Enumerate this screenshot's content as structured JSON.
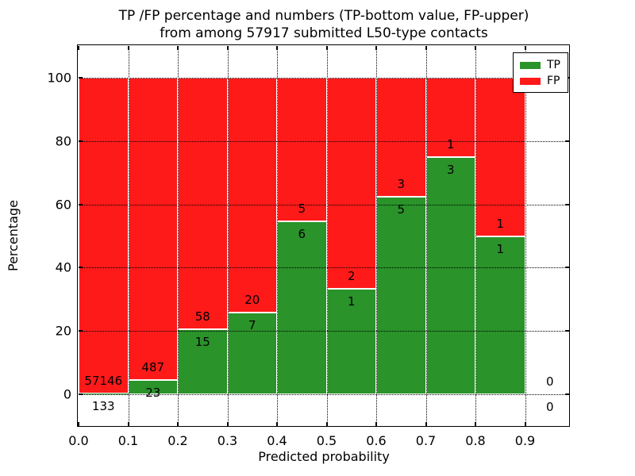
{
  "title_line1": "TP /FP percentage and numbers (TP-bottom value, FP-upper)",
  "title_line2": "from among 57917 submitted L50-type contacts",
  "chart_data": {
    "type": "bar",
    "stacked": true,
    "normalized_to_percent": true,
    "title": "TP /FP percentage and numbers (TP-bottom value, FP-upper) from among 57917 submitted L50-type contacts",
    "xlabel": "Predicted probability",
    "ylabel": "Percentage",
    "xlim": [
      0.0,
      0.988
    ],
    "ylim": [
      -10,
      110
    ],
    "grid": "dotted black, on",
    "bin_width": 0.1,
    "legend_position": "upper right",
    "legend": [
      {
        "label": "TP",
        "color": "#2a932a"
      },
      {
        "label": "FP",
        "color": "#ff1a1a"
      }
    ],
    "x_ticks": [
      {
        "value": 0.0,
        "label": "0.0"
      },
      {
        "value": 0.1,
        "label": "0.1"
      },
      {
        "value": 0.2,
        "label": "0.2"
      },
      {
        "value": 0.3,
        "label": "0.3"
      },
      {
        "value": 0.4,
        "label": "0.4"
      },
      {
        "value": 0.5,
        "label": "0.5"
      },
      {
        "value": 0.6,
        "label": "0.6"
      },
      {
        "value": 0.7,
        "label": "0.7"
      },
      {
        "value": 0.8,
        "label": "0.8"
      },
      {
        "value": 0.9,
        "label": "0.9"
      }
    ],
    "y_ticks": [
      {
        "value": 0,
        "label": "0"
      },
      {
        "value": 20,
        "label": "20"
      },
      {
        "value": 40,
        "label": "40"
      },
      {
        "value": 60,
        "label": "60"
      },
      {
        "value": 80,
        "label": "80"
      },
      {
        "value": 100,
        "label": "100"
      }
    ],
    "bins": [
      {
        "x_start": 0.0,
        "x_end": 0.1,
        "tp": 133,
        "fp": 57146,
        "tp_pct": 0.23
      },
      {
        "x_start": 0.1,
        "x_end": 0.2,
        "tp": 23,
        "fp": 487,
        "tp_pct": 4.51
      },
      {
        "x_start": 0.2,
        "x_end": 0.3,
        "tp": 15,
        "fp": 58,
        "tp_pct": 20.55
      },
      {
        "x_start": 0.3,
        "x_end": 0.4,
        "tp": 7,
        "fp": 20,
        "tp_pct": 25.93
      },
      {
        "x_start": 0.4,
        "x_end": 0.5,
        "tp": 6,
        "fp": 5,
        "tp_pct": 54.55
      },
      {
        "x_start": 0.5,
        "x_end": 0.6,
        "tp": 1,
        "fp": 2,
        "tp_pct": 33.33
      },
      {
        "x_start": 0.6,
        "x_end": 0.7,
        "tp": 5,
        "fp": 3,
        "tp_pct": 62.5
      },
      {
        "x_start": 0.7,
        "x_end": 0.8,
        "tp": 3,
        "fp": 1,
        "tp_pct": 75.0
      },
      {
        "x_start": 0.8,
        "x_end": 0.9,
        "tp": 1,
        "fp": 1,
        "tp_pct": 50.0
      },
      {
        "x_start": 0.9,
        "x_end": 1.0,
        "tp": 0,
        "fp": 0,
        "tp_pct": null
      }
    ]
  }
}
